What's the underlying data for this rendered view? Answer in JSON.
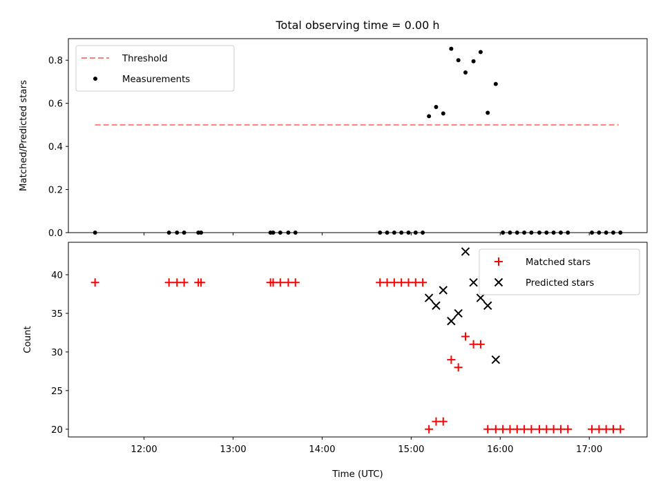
{
  "chart_data": {
    "title": "Total observing time = 0.00 h",
    "xlabel": "Time (UTC)",
    "x_tick_labels": [
      "12:00",
      "13:00",
      "14:00",
      "15:00",
      "16:00",
      "17:00"
    ],
    "x_ticks_hours": [
      12,
      13,
      14,
      15,
      16,
      17
    ],
    "xlim_hours": [
      11.15,
      17.65
    ],
    "panels": [
      {
        "type": "scatter",
        "ylabel": "Matched/Predicted stars",
        "ylim": [
          0,
          0.9
        ],
        "y_ticks": [
          0.0,
          0.2,
          0.4,
          0.6,
          0.8
        ],
        "y_tick_labels": [
          "0.0",
          "0.2",
          "0.4",
          "0.6",
          "0.8"
        ],
        "legend_position": "upper-left",
        "series": [
          {
            "name": "Threshold",
            "kind": "dashed-line",
            "color": "#ff7f7f",
            "x": [
              11.45,
              17.33
            ],
            "y": [
              0.5,
              0.5
            ]
          },
          {
            "name": "Measurements",
            "kind": "dot",
            "color": "#000000",
            "x": [
              11.45,
              12.28,
              12.37,
              12.45,
              12.61,
              12.64,
              13.42,
              13.45,
              13.53,
              13.62,
              13.7,
              14.65,
              14.73,
              14.81,
              14.89,
              14.97,
              15.05,
              15.13,
              15.2,
              15.28,
              15.36,
              15.45,
              15.53,
              15.61,
              15.7,
              15.78,
              15.86,
              15.95,
              16.03,
              16.11,
              16.19,
              16.27,
              16.35,
              16.44,
              16.52,
              16.6,
              16.68,
              16.76,
              17.03,
              17.11,
              17.19,
              17.27,
              17.35
            ],
            "y": [
              0,
              0,
              0,
              0,
              0,
              0,
              0,
              0,
              0,
              0,
              0,
              0,
              0,
              0,
              0,
              0,
              0,
              0,
              0.54,
              0.583,
              0.553,
              0.853,
              0.8,
              0.743,
              0.795,
              0.838,
              0.556,
              0.69,
              0,
              0,
              0,
              0,
              0,
              0,
              0,
              0,
              0,
              0,
              0,
              0,
              0,
              0,
              0
            ]
          }
        ]
      },
      {
        "type": "scatter",
        "ylabel": "Count",
        "ylim": [
          19.0,
          44.2
        ],
        "y_ticks": [
          20,
          25,
          30,
          35,
          40
        ],
        "y_tick_labels": [
          "20",
          "25",
          "30",
          "35",
          "40"
        ],
        "legend_position": "upper-right",
        "series": [
          {
            "name": "Matched stars",
            "kind": "plus",
            "color": "#ff0000",
            "x": [
              11.45,
              12.28,
              12.37,
              12.45,
              12.61,
              12.64,
              13.42,
              13.45,
              13.53,
              13.62,
              13.7,
              14.65,
              14.73,
              14.81,
              14.89,
              14.97,
              15.05,
              15.13,
              15.2,
              15.28,
              15.36,
              15.45,
              15.53,
              15.61,
              15.7,
              15.78,
              15.86,
              15.95,
              16.03,
              16.11,
              16.19,
              16.27,
              16.35,
              16.44,
              16.52,
              16.6,
              16.68,
              16.76,
              17.03,
              17.11,
              17.19,
              17.27,
              17.35
            ],
            "y": [
              39,
              39,
              39,
              39,
              39,
              39,
              39,
              39,
              39,
              39,
              39,
              39,
              39,
              39,
              39,
              39,
              39,
              39,
              20,
              21,
              21,
              29,
              28,
              32,
              31,
              31,
              20,
              20,
              20,
              20,
              20,
              20,
              20,
              20,
              20,
              20,
              20,
              20,
              20,
              20,
              20,
              20,
              20
            ]
          },
          {
            "name": "Predicted stars",
            "kind": "x",
            "color": "#000000",
            "x": [
              15.2,
              15.28,
              15.36,
              15.45,
              15.53,
              15.61,
              15.7,
              15.78,
              15.86,
              15.95
            ],
            "y": [
              37,
              36,
              38,
              34,
              35,
              43,
              39,
              37,
              36,
              29
            ]
          }
        ]
      }
    ]
  }
}
